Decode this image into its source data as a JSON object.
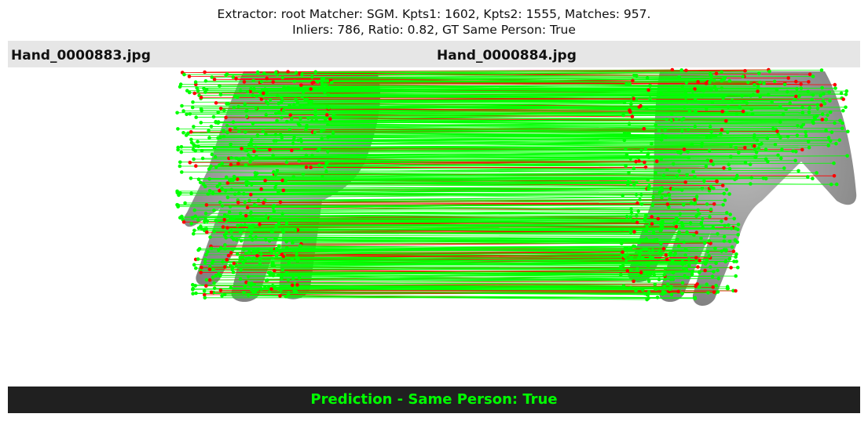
{
  "title": {
    "line1": "Extractor:  root Matcher: SGM. Kpts1: 1602, Kpts2: 1555, Matches: 957.",
    "line2": "Inliers: 786, Ratio: 0.82, GT Same Person: True"
  },
  "images": {
    "left_filename": "Hand_0000883.jpg",
    "right_filename": "Hand_0000884.jpg"
  },
  "prediction": {
    "text": "Prediction - Same Person: True"
  },
  "colors": {
    "inlier": "#00ff00",
    "outlier": "#ff0000",
    "header_bg": "#e6e6e6",
    "banner_bg": "#202020",
    "prediction_text": "#00ff00",
    "hand_skin": "#9a9a9a"
  }
}
